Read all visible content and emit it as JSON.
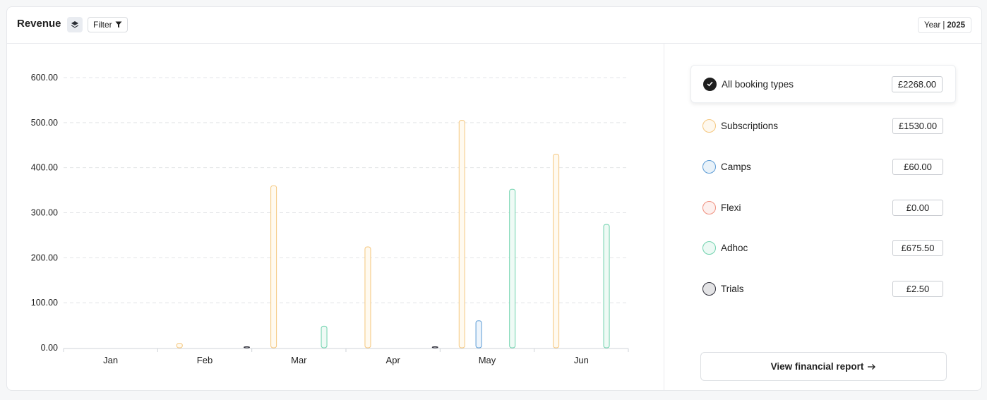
{
  "header": {
    "title": "Revenue",
    "filter_label": "Filter",
    "year_label": "Year |",
    "year_value": "2025"
  },
  "sidebar": {
    "types": [
      {
        "label": "All booking types",
        "amount": "£2268.00",
        "selected": true,
        "color": "#1e1e1e"
      },
      {
        "label": "Subscriptions",
        "amount": "£1530.00",
        "selected": false,
        "color": "#f5c77e"
      },
      {
        "label": "Camps",
        "amount": "£60.00",
        "selected": false,
        "color": "#5b9bd5"
      },
      {
        "label": "Flexi",
        "amount": "£0.00",
        "selected": false,
        "color": "#ef8f7e"
      },
      {
        "label": "Adhoc",
        "amount": "£675.50",
        "selected": false,
        "color": "#6fd2ad"
      },
      {
        "label": "Trials",
        "amount": "£2.50",
        "selected": false,
        "color": "#2f2f3a"
      }
    ],
    "report_label": "View financial report",
    "report_icon": "arrow-right-icon"
  },
  "chart_data": {
    "type": "bar",
    "categories": [
      "Jan",
      "Feb",
      "Mar",
      "Apr",
      "May",
      "Jun"
    ],
    "yticks": [
      "0.00",
      "100.00",
      "200.00",
      "300.00",
      "400.00",
      "500.00",
      "600.00"
    ],
    "ylim": [
      0,
      600
    ],
    "grid": true,
    "series": [
      {
        "name": "Subscriptions",
        "color": "#f5c77e",
        "fill": "#fffaf0",
        "values": [
          0,
          10,
          360,
          224,
          505,
          430
        ]
      },
      {
        "name": "Camps",
        "color": "#5b9bd5",
        "fill": "#eef5fc",
        "values": [
          0,
          0,
          0,
          0,
          60,
          0
        ]
      },
      {
        "name": "Flexi",
        "color": "#ef8f7e",
        "fill": "#fdf0ee",
        "values": [
          0,
          0,
          0,
          0,
          0,
          0
        ]
      },
      {
        "name": "Adhoc",
        "color": "#6fd2ad",
        "fill": "#effaf5",
        "values": [
          0,
          0,
          48,
          0,
          352,
          274
        ]
      },
      {
        "name": "Trials",
        "color": "#2f2f3a",
        "fill": "#e7e7ea",
        "values": [
          0,
          1,
          0,
          1,
          0,
          0
        ]
      }
    ]
  }
}
